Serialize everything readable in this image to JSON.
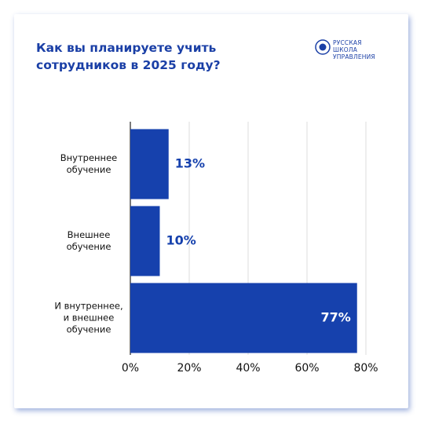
{
  "chart_data": {
    "type": "barh",
    "title": "Как вы планируете учить сотрудников в 2025 году?",
    "logo": "РУССКАЯ\nШКОЛА\nУПРАВЛЕНИЯ",
    "categories": [
      "Внутреннее\nобучение",
      "Внешнее\nобучение",
      "И внутреннее,\nи внешнее\nобучение"
    ],
    "values": [
      13,
      10,
      77
    ],
    "value_labels": [
      "13%",
      "10%",
      "77%"
    ],
    "color": "#1641ad",
    "xlim": [
      0,
      80
    ],
    "xticks": [
      {
        "value": 0,
        "label": "0%"
      },
      {
        "value": 20,
        "label": "20%"
      },
      {
        "value": 40,
        "label": "40%"
      },
      {
        "value": 60,
        "label": "60%"
      },
      {
        "value": 80,
        "label": "80%"
      }
    ],
    "grid": true
  }
}
